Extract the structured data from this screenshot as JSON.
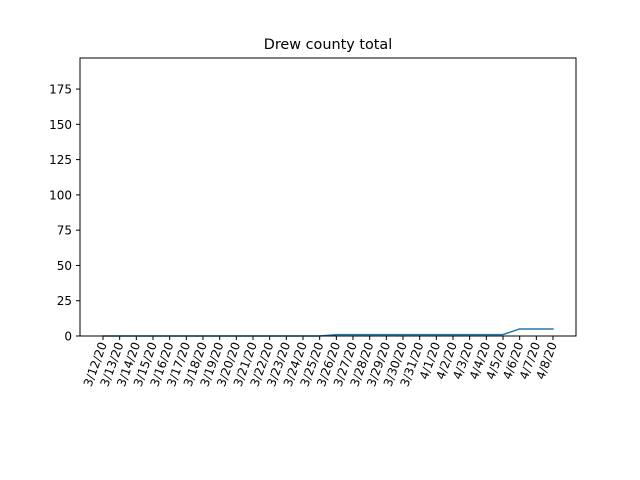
{
  "chart_data": {
    "type": "line",
    "title": "Drew county total",
    "xlabel": "",
    "ylabel": "",
    "x": [
      "3/12/20",
      "3/13/20",
      "3/14/20",
      "3/15/20",
      "3/16/20",
      "3/17/20",
      "3/18/20",
      "3/19/20",
      "3/20/20",
      "3/21/20",
      "3/22/20",
      "3/23/20",
      "3/24/20",
      "3/25/20",
      "3/26/20",
      "3/27/20",
      "3/28/20",
      "3/29/20",
      "3/30/20",
      "3/31/20",
      "4/1/20",
      "4/2/20",
      "4/3/20",
      "4/4/20",
      "4/5/20",
      "4/6/20",
      "4/7/20",
      "4/8/20"
    ],
    "series": [
      {
        "values": [
          0,
          0,
          0,
          0,
          0,
          0,
          0,
          0,
          0,
          0,
          0,
          0,
          0,
          0,
          1,
          1,
          1,
          1,
          1,
          1,
          1,
          1,
          1,
          1,
          1,
          5,
          5,
          5
        ]
      }
    ],
    "yticks": [
      0,
      25,
      50,
      75,
      100,
      125,
      150,
      175
    ],
    "ylim": [
      0,
      197
    ],
    "grid": false,
    "colors": {
      "line": "#1f77b4",
      "axis": "#000000"
    }
  }
}
